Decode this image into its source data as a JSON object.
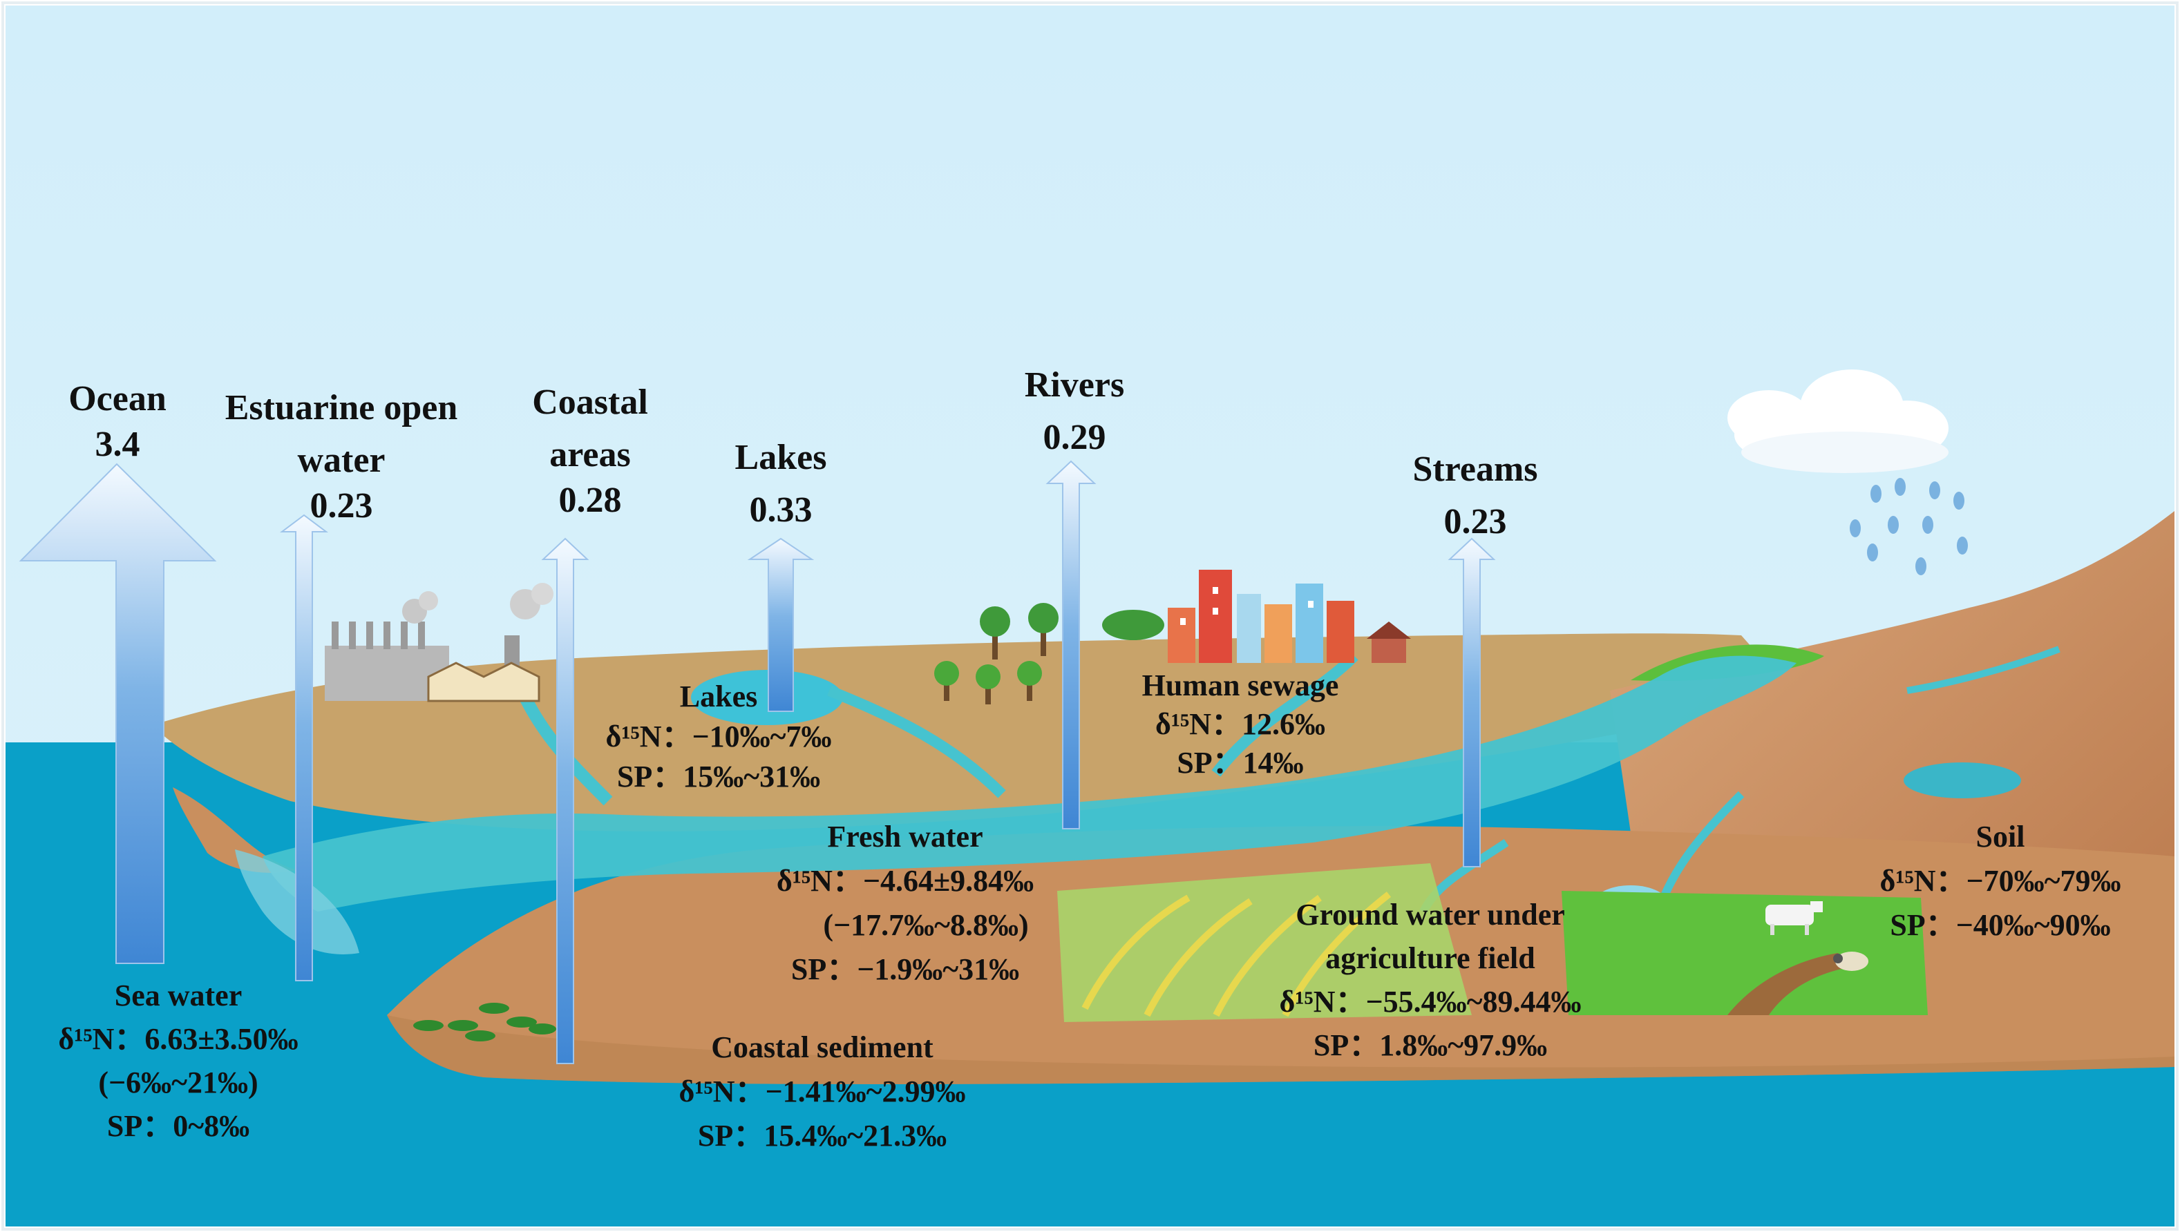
{
  "colors": {
    "sky": "#d6f0fb",
    "ocean": "#0aa0c8",
    "land_top": "#c8a36a",
    "land_front": "#c98f5e",
    "river": "#46c3cf",
    "arrow_light": "#f2f8ff",
    "arrow_dark": "#3f86d4",
    "grass": "#5cbf3c",
    "label_text": "#111111"
  },
  "icons": [
    "factory-icon",
    "cloud-icon",
    "raindrop-icon",
    "tree-icon",
    "city-buildings-icon",
    "house-icon",
    "cow-icon",
    "sheep-icon",
    "palm-plant-icon"
  ],
  "fluxes": [
    {
      "id": "ocean",
      "lines": [
        "Ocean"
      ],
      "value": "3.4",
      "value_num": 3.4
    },
    {
      "id": "estuarine",
      "lines": [
        "Estuarine open",
        "water"
      ],
      "value": "0.23",
      "value_num": 0.23
    },
    {
      "id": "coastal",
      "lines": [
        "Coastal",
        "areas"
      ],
      "value": "0.28",
      "value_num": 0.28
    },
    {
      "id": "lakes",
      "lines": [
        "Lakes"
      ],
      "value": "0.33",
      "value_num": 0.33
    },
    {
      "id": "rivers",
      "lines": [
        "Rivers"
      ],
      "value": "0.29",
      "value_num": 0.29
    },
    {
      "id": "streams",
      "lines": [
        "Streams"
      ],
      "value": "0.23",
      "value_num": 0.23
    }
  ],
  "sources": {
    "lakes": {
      "title": "Lakes",
      "lines": [
        "δ¹⁵N：−10‰~7‰",
        "SP：15‰~31‰"
      ]
    },
    "sewage": {
      "title": "Human sewage",
      "lines": [
        "δ¹⁵N：12.6‰",
        "SP：14‰"
      ]
    },
    "freshwater": {
      "title": "Fresh water",
      "lines": [
        "δ¹⁵N：−4.64±9.84‰",
        "(−17.7‰~8.8‰)",
        "SP：−1.9‰~31‰"
      ]
    },
    "groundwater": {
      "title": [
        "Ground water under",
        "agriculture field"
      ],
      "lines": [
        "δ¹⁵N：−55.4‰~89.44‰",
        "SP：1.8‰~97.9‰"
      ]
    },
    "soil": {
      "title": "Soil",
      "lines": [
        "δ¹⁵N：−70‰~79‰",
        "SP：−40‰~90‰"
      ]
    },
    "seawater": {
      "title": "Sea water",
      "lines": [
        "δ¹⁵N：6.63±3.50‰",
        "(−6‰~21‰)",
        "SP：0~8‰"
      ]
    },
    "coastal_sediment": {
      "title": "Coastal sediment",
      "lines": [
        "δ¹⁵N：−1.41‰~2.99‰",
        "SP：15.4‰~21.3‰"
      ]
    }
  }
}
